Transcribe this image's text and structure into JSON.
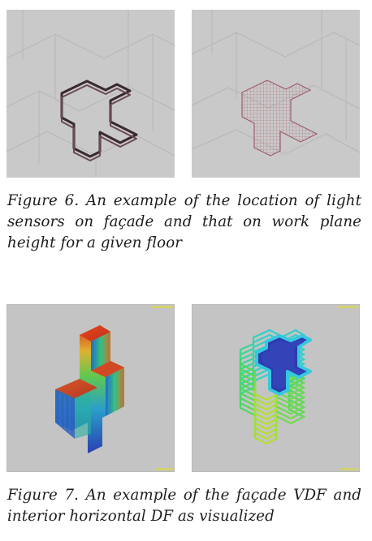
{
  "figure6": {
    "caption": "Figure 6. An example of the location of light sensors on façade and that on work plane height for a given floor",
    "panels": [
      "facade-sensors",
      "work-plane-sensors"
    ]
  },
  "figure7": {
    "caption": "Figure 7. An example of the façade VDF and interior horizontal DF as visualized",
    "panels": [
      "facade-vdf-visualization",
      "interior-df-visualization"
    ]
  },
  "colors": {
    "viewport_bg": "#c9c9c9",
    "building_outline": "#3a2a2e",
    "sensor_grid": "#b0707e",
    "df_low": "#2a3fb4",
    "df_mid": "#30d080",
    "df_high": "#d0341c"
  }
}
